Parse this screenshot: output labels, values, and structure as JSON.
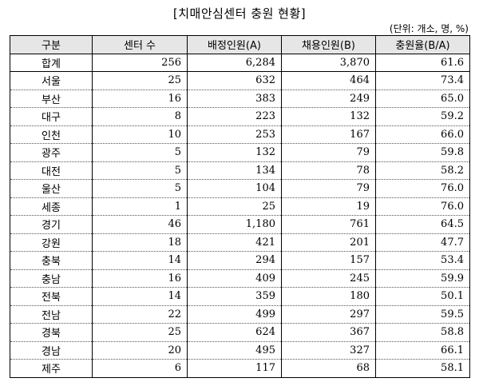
{
  "title": "[치매안심센터 충원 현황]",
  "unit": "(단위: 개소, 명, %)",
  "table": {
    "headers": [
      "구분",
      "센터 수",
      "배정인원(A)",
      "채용인원(B)",
      "충원율(B/A)"
    ],
    "total": [
      "합계",
      "256",
      "6,284",
      "3,870",
      "61.6"
    ],
    "rows": [
      [
        "서울",
        "25",
        "632",
        "464",
        "73.4"
      ],
      [
        "부산",
        "16",
        "383",
        "249",
        "65.0"
      ],
      [
        "대구",
        "8",
        "223",
        "132",
        "59.2"
      ],
      [
        "인천",
        "10",
        "253",
        "167",
        "66.0"
      ],
      [
        "광주",
        "5",
        "132",
        "79",
        "59.8"
      ],
      [
        "대전",
        "5",
        "134",
        "78",
        "58.2"
      ],
      [
        "울산",
        "5",
        "104",
        "79",
        "76.0"
      ],
      [
        "세종",
        "1",
        "25",
        "19",
        "76.0"
      ],
      [
        "경기",
        "46",
        "1,180",
        "761",
        "64.5"
      ],
      [
        "강원",
        "18",
        "421",
        "201",
        "47.7"
      ],
      [
        "충북",
        "14",
        "294",
        "157",
        "53.4"
      ],
      [
        "충남",
        "16",
        "409",
        "245",
        "59.9"
      ],
      [
        "전북",
        "14",
        "359",
        "180",
        "50.1"
      ],
      [
        "전남",
        "22",
        "499",
        "297",
        "59.5"
      ],
      [
        "경북",
        "25",
        "624",
        "367",
        "58.8"
      ],
      [
        "경남",
        "20",
        "495",
        "327",
        "66.1"
      ],
      [
        "제주",
        "6",
        "117",
        "68",
        "58.1"
      ]
    ]
  }
}
